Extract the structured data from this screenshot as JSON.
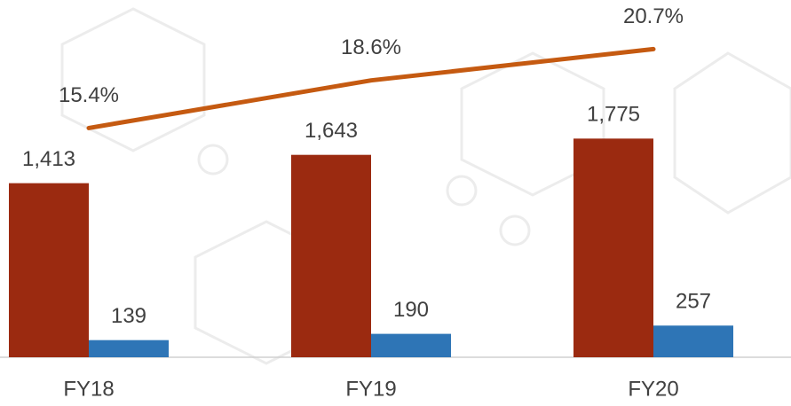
{
  "chart_data": {
    "type": "bar",
    "categories": [
      "FY18",
      "FY19",
      "FY20"
    ],
    "series": [
      {
        "color": "#9b2a10",
        "values": [
          1413,
          1643,
          1775
        ],
        "value_labels": [
          "1,413",
          "1,643",
          "1,775"
        ]
      },
      {
        "color": "#2e75b6",
        "values": [
          139,
          190,
          257
        ]
      },
      {
        "type": "line",
        "axis": "y2",
        "color": "#c55a11",
        "values": [
          15.4,
          18.6,
          20.7
        ],
        "value_labels": [
          "15.4%",
          "18.6%",
          "20.7%"
        ]
      }
    ],
    "ylim": [
      0,
      2900
    ],
    "y2lim": [
      0,
      24
    ]
  }
}
